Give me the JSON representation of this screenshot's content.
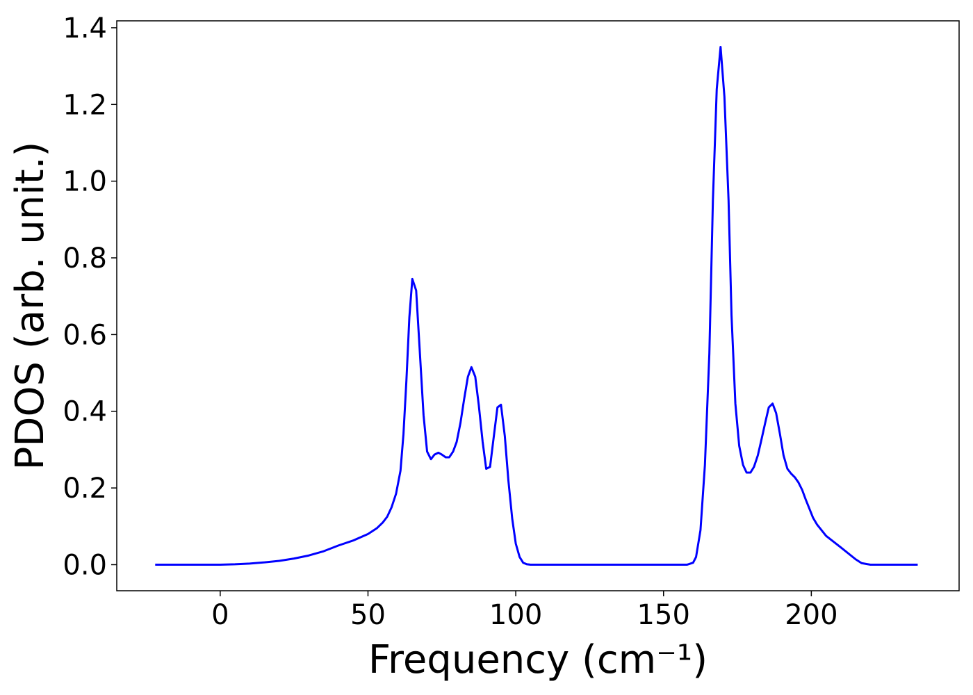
{
  "chart_data": {
    "type": "line",
    "xlabel": "Frequency (cm⁻¹)",
    "ylabel": "PDOS (arb. unit.)",
    "xlim": [
      -35,
      250
    ],
    "ylim": [
      -0.068,
      1.418
    ],
    "xticks": [
      0,
      50,
      100,
      150,
      200
    ],
    "yticks": [
      {
        "value": 0,
        "label": "0.0"
      },
      0.2,
      0.4,
      0.6,
      0.8,
      {
        "value": 1,
        "label": "1.0"
      },
      1.2,
      1.4
    ],
    "grid": false,
    "series": [
      {
        "color": "#0000ff",
        "x": [
          -22,
          0,
          5,
          10,
          15,
          20,
          25,
          30,
          35,
          40,
          45,
          50,
          53,
          55,
          56.5,
          58,
          59.5,
          61,
          62,
          63,
          64,
          65,
          66.3,
          67.5,
          68.8,
          70,
          71.3,
          72.5,
          73.8,
          75,
          76.3,
          77.5,
          78.8,
          80,
          81.3,
          82.5,
          83.8,
          85,
          86.3,
          87.5,
          88.8,
          90,
          91.3,
          92.5,
          93.8,
          95,
          96.3,
          97.5,
          98.8,
          100,
          101.3,
          102.5,
          103.8,
          105,
          158,
          160,
          161,
          162.5,
          164,
          165.5,
          166.7,
          168,
          169.3,
          170.6,
          172,
          173,
          174.3,
          175.6,
          176.9,
          178.1,
          179.4,
          180.6,
          181.9,
          183.1,
          184.4,
          185.6,
          186.9,
          188.1,
          189.4,
          190.6,
          191.9,
          193.1,
          194.4,
          195.6,
          196.9,
          198.1,
          199.4,
          200.6,
          201.9,
          205,
          210,
          215,
          217,
          220,
          236
        ],
        "values": [
          0,
          0,
          0.001,
          0.003,
          0.006,
          0.01,
          0.016,
          0.024,
          0.035,
          0.05,
          0.063,
          0.08,
          0.095,
          0.11,
          0.125,
          0.15,
          0.185,
          0.245,
          0.34,
          0.48,
          0.645,
          0.745,
          0.715,
          0.56,
          0.39,
          0.295,
          0.275,
          0.287,
          0.292,
          0.287,
          0.28,
          0.28,
          0.295,
          0.32,
          0.37,
          0.43,
          0.49,
          0.515,
          0.49,
          0.415,
          0.32,
          0.25,
          0.255,
          0.33,
          0.41,
          0.417,
          0.335,
          0.22,
          0.12,
          0.055,
          0.02,
          0.005,
          0.001,
          0,
          0,
          0.005,
          0.02,
          0.09,
          0.26,
          0.55,
          0.95,
          1.24,
          1.35,
          1.22,
          0.95,
          0.65,
          0.42,
          0.31,
          0.26,
          0.24,
          0.24,
          0.255,
          0.285,
          0.325,
          0.37,
          0.41,
          0.42,
          0.395,
          0.34,
          0.285,
          0.25,
          0.238,
          0.228,
          0.215,
          0.195,
          0.17,
          0.145,
          0.122,
          0.105,
          0.075,
          0.045,
          0.014,
          0.004,
          0,
          0
        ]
      }
    ]
  }
}
